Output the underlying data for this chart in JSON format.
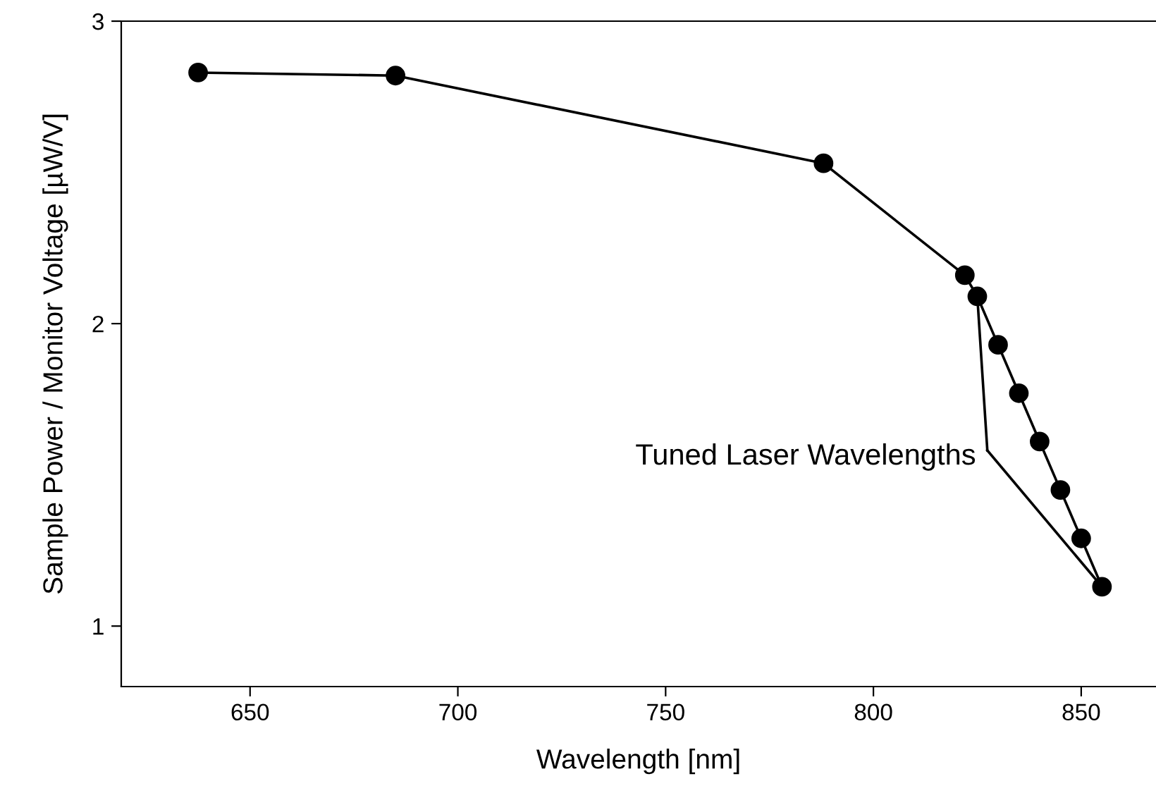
{
  "chart_data": {
    "type": "line",
    "xlabel": "Wavelength [nm]",
    "ylabel": "Sample Power / Monitor Voltage [µW/V]",
    "x": [
      637.5,
      685,
      788,
      822,
      825,
      830,
      835,
      840,
      845,
      850,
      855
    ],
    "series": [
      {
        "color": "#000000",
        "values": [
          2.83,
          2.82,
          2.53,
          2.16,
          2.09,
          1.93,
          1.77,
          1.61,
          1.45,
          1.29,
          1.13
        ]
      }
    ],
    "marker": "circle",
    "line_style": "solid",
    "grid": false,
    "legend": false,
    "xlim": [
      619,
      868
    ],
    "xticks": [
      650,
      700,
      750,
      800,
      850
    ],
    "ylim": [
      0.8,
      3
    ],
    "yticks": [
      1,
      2,
      3
    ],
    "annotations": [
      {
        "text": "Tuned Laser Wavelengths",
        "x": 855,
        "y": 1.13
      }
    ]
  }
}
